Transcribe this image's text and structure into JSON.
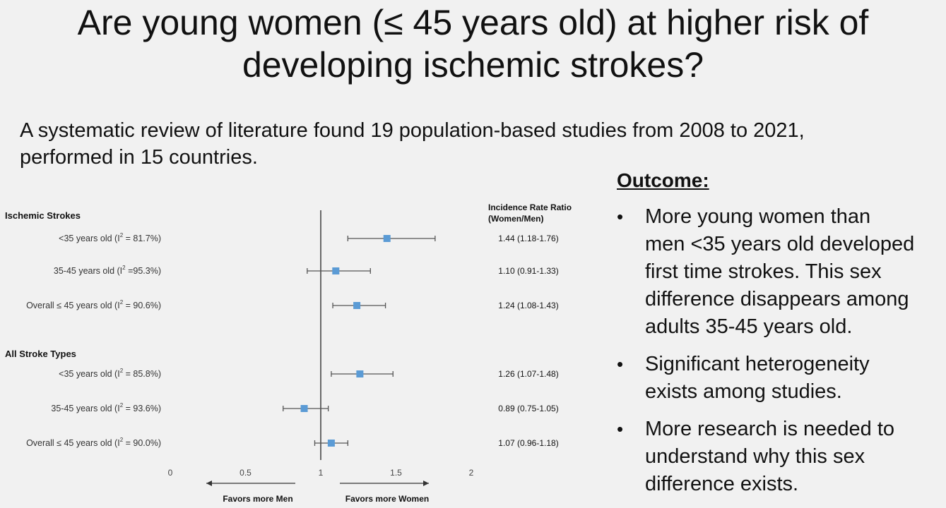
{
  "title_lines": [
    "Are young women (≤ 45 years old) at higher risk of",
    "developing ischemic strokes?"
  ],
  "subtitle_lines": [
    "A systematic review of literature found 19 population-based studies from 2008 to 2021,",
    "performed in 15 countries."
  ],
  "outcome": {
    "heading": "Outcome:",
    "bullet_symbol": "•",
    "bullets": [
      {
        "lines": [
          "More young women than",
          "men <35 years old developed",
          "first time strokes.  This sex",
          "difference disappears among",
          "adults 35-45 years old."
        ]
      },
      {
        "lines": [
          "Significant heterogeneity",
          "exists among studies."
        ]
      },
      {
        "lines": [
          "More research is needed to",
          "understand why this sex",
          "difference exists."
        ]
      }
    ]
  },
  "chart_data": {
    "type": "forest",
    "column_header_lines": [
      "Incidence Rate Ratio",
      "(Women/Men)"
    ],
    "xlim": [
      0,
      2
    ],
    "x_ticks": [
      "0",
      "0.5",
      "1",
      "1.5",
      "2"
    ],
    "reference_line": 1,
    "left_arrow_label": "Favors more Men",
    "right_arrow_label": "Favors more Women",
    "marker_color": "#5b9bd5",
    "groups": [
      {
        "title": "Ischemic Strokes",
        "rows": [
          {
            "label_pre": "<35 years old (I",
            "sup": "2",
            "label_post": " = 81.7%)",
            "estimate": 1.44,
            "lower": 1.18,
            "upper": 1.76,
            "text": "1.44 (1.18-1.76)"
          },
          {
            "label_pre": "35-45 years old (I",
            "sup": "2",
            "label_post": " =95.3%)",
            "estimate": 1.1,
            "lower": 0.91,
            "upper": 1.33,
            "text": "1.10 (0.91-1.33)"
          },
          {
            "label_pre": "Overall ≤ 45 years old (I",
            "sup": "2",
            "label_post": " = 90.6%)",
            "estimate": 1.24,
            "lower": 1.08,
            "upper": 1.43,
            "text": "1.24 (1.08-1.43)"
          }
        ]
      },
      {
        "title": "All Stroke Types",
        "rows": [
          {
            "label_pre": "<35 years old (I",
            "sup": "2",
            "label_post": " = 85.8%)",
            "estimate": 1.26,
            "lower": 1.07,
            "upper": 1.48,
            "text": "1.26 (1.07-1.48)"
          },
          {
            "label_pre": "35-45 years old  (I",
            "sup": "2",
            "label_post": " = 93.6%)",
            "estimate": 0.89,
            "lower": 0.75,
            "upper": 1.05,
            "text": "0.89 (0.75-1.05)"
          },
          {
            "label_pre": "Overall ≤ 45 years old (I",
            "sup": "2",
            "label_post": " = 90.0%)",
            "estimate": 1.07,
            "lower": 0.96,
            "upper": 1.18,
            "text": "1.07 (0.96-1.18)"
          }
        ]
      }
    ]
  }
}
